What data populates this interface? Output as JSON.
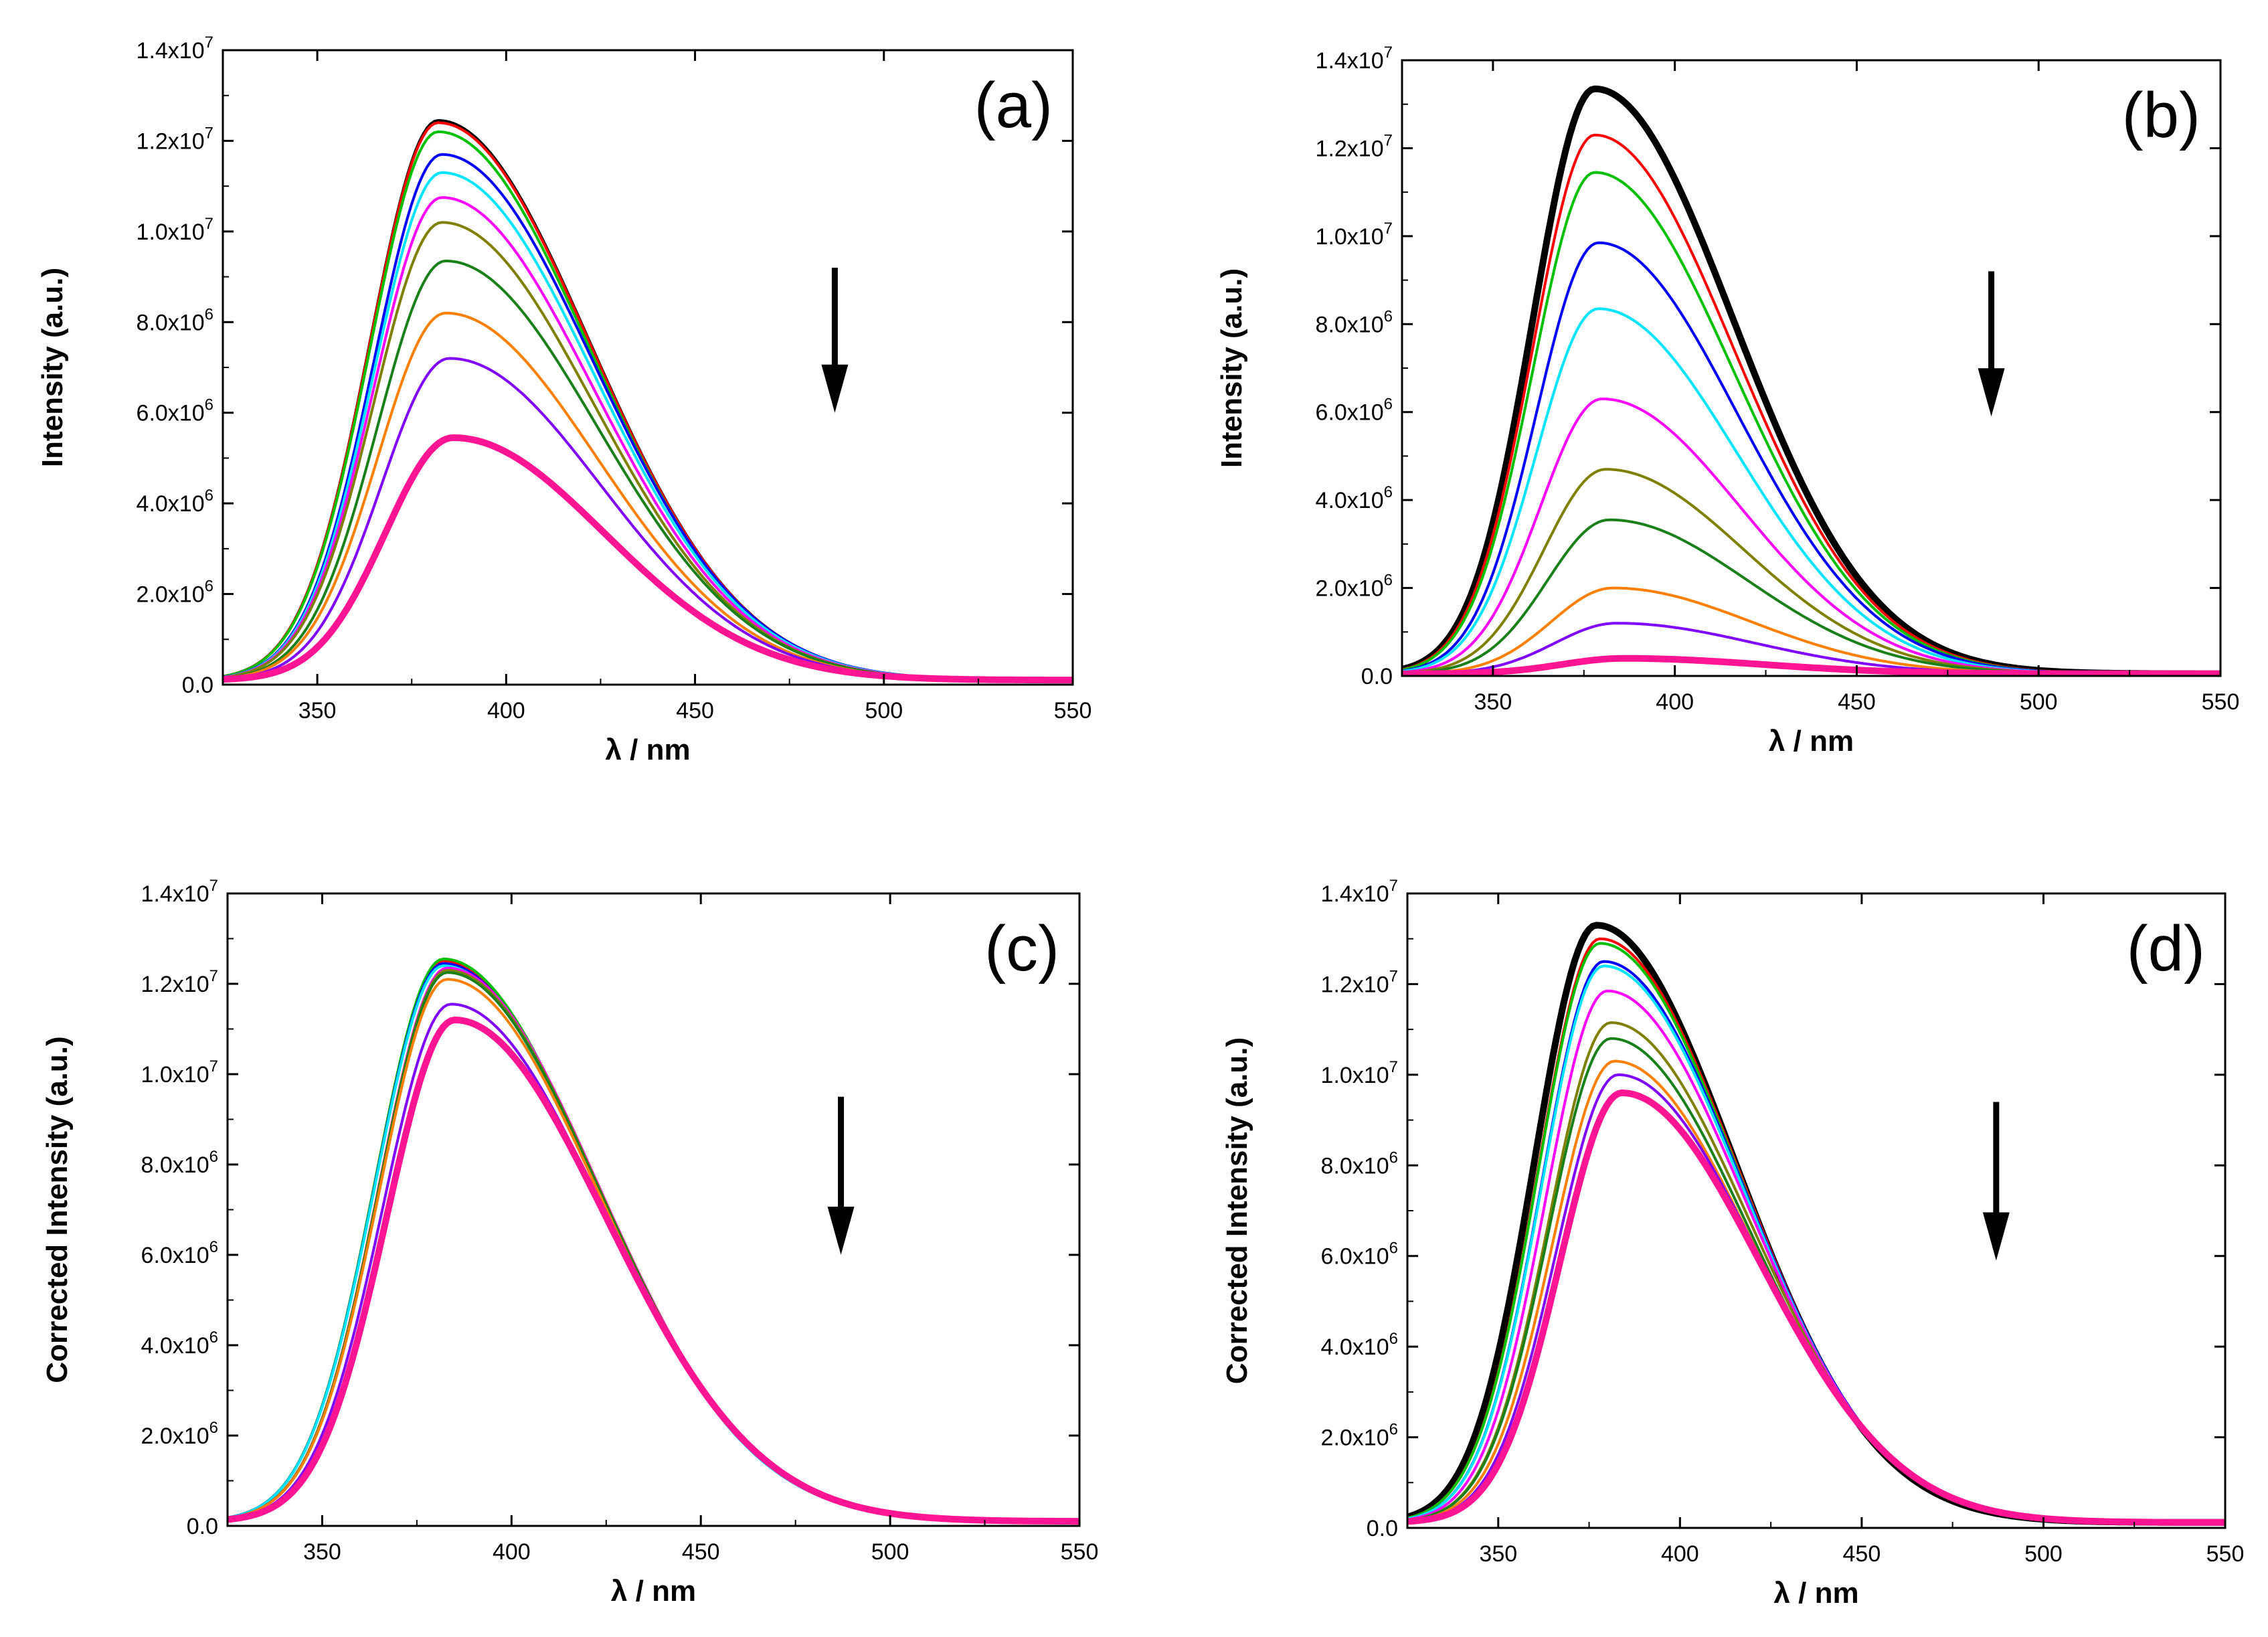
{
  "chart_data": [
    {
      "panel": "(a)",
      "type": "line",
      "xlabel": "λ / nm",
      "ylabel": "Intensity (a.u.)",
      "xlim": [
        325,
        550
      ],
      "ylim": [
        0,
        14000000
      ],
      "xticks": [
        {
          "v": 350,
          "label": "350"
        },
        {
          "v": 400,
          "label": "400"
        },
        {
          "v": 450,
          "label": "450"
        },
        {
          "v": 500,
          "label": "500"
        },
        {
          "v": 550,
          "label": "550"
        }
      ],
      "yticks": [
        {
          "v": 0,
          "mant": "0.0",
          "exp": ""
        },
        {
          "v": 2000000,
          "mant": "2.0x10",
          "exp": "6"
        },
        {
          "v": 4000000,
          "mant": "4.0x10",
          "exp": "6"
        },
        {
          "v": 6000000,
          "mant": "6.0x10",
          "exp": "6"
        },
        {
          "v": 8000000,
          "mant": "8.0x10",
          "exp": "6"
        },
        {
          "v": 10000000,
          "mant": "1.0x10",
          "exp": "7"
        },
        {
          "v": 12000000,
          "mant": "1.2x10",
          "exp": "7"
        },
        {
          "v": 14000000,
          "mant": "1.4x10",
          "exp": "7"
        }
      ],
      "arrow": {
        "x": 487,
        "y_from": 9200000,
        "y_to": 6000000
      },
      "curve_shape": {
        "sigma_left": 18,
        "sigma_right": 40,
        "baseline": 100000
      },
      "series": [
        {
          "color": "#000000",
          "peak": 12450000,
          "center": 382,
          "width": 2
        },
        {
          "color": "#ff0000",
          "peak": 12400000,
          "center": 382,
          "width": 2
        },
        {
          "color": "#00c000",
          "peak": 12200000,
          "center": 382,
          "width": 2
        },
        {
          "color": "#0000ff",
          "peak": 11700000,
          "center": 383,
          "width": 2
        },
        {
          "color": "#00e5ff",
          "peak": 11300000,
          "center": 383,
          "width": 2
        },
        {
          "color": "#ff00ff",
          "peak": 10750000,
          "center": 383,
          "width": 2
        },
        {
          "color": "#808000",
          "peak": 10200000,
          "center": 383,
          "width": 2
        },
        {
          "color": "#1a801a",
          "peak": 9350000,
          "center": 384,
          "width": 2
        },
        {
          "color": "#ff8000",
          "peak": 8200000,
          "center": 384,
          "width": 2
        },
        {
          "color": "#8000ff",
          "peak": 7200000,
          "center": 385,
          "width": 2
        },
        {
          "color": "#ff1493",
          "peak": 5450000,
          "center": 386,
          "width": 5
        }
      ]
    },
    {
      "panel": "(b)",
      "type": "line",
      "xlabel": "λ / nm",
      "ylabel": "Intensity (a.u.)",
      "xlim": [
        325,
        550
      ],
      "ylim": [
        0,
        14000000
      ],
      "xticks": [
        {
          "v": 350,
          "label": "350"
        },
        {
          "v": 400,
          "label": "400"
        },
        {
          "v": 450,
          "label": "450"
        },
        {
          "v": 500,
          "label": "500"
        },
        {
          "v": 550,
          "label": "550"
        }
      ],
      "yticks": [
        {
          "v": 0,
          "mant": "0.0",
          "exp": ""
        },
        {
          "v": 2000000,
          "mant": "2.0x10",
          "exp": "6"
        },
        {
          "v": 4000000,
          "mant": "4.0x10",
          "exp": "6"
        },
        {
          "v": 6000000,
          "mant": "6.0x10",
          "exp": "6"
        },
        {
          "v": 8000000,
          "mant": "8.0x10",
          "exp": "6"
        },
        {
          "v": 10000000,
          "mant": "1.0x10",
          "exp": "7"
        },
        {
          "v": 12000000,
          "mant": "1.2x10",
          "exp": "7"
        },
        {
          "v": 14000000,
          "mant": "1.4x10",
          "exp": "7"
        }
      ],
      "arrow": {
        "x": 487,
        "y_from": 9200000,
        "y_to": 5900000
      },
      "curve_shape": {
        "sigma_left": 17,
        "sigma_right": 38,
        "baseline": 50000
      },
      "series": [
        {
          "color": "#000000",
          "peak": 13350000,
          "center": 378,
          "width": 5
        },
        {
          "color": "#ff0000",
          "peak": 12300000,
          "center": 378,
          "width": 2
        },
        {
          "color": "#00c000",
          "peak": 11450000,
          "center": 378,
          "width": 2
        },
        {
          "color": "#0000ff",
          "peak": 9850000,
          "center": 379,
          "width": 2
        },
        {
          "color": "#00e5ff",
          "peak": 8350000,
          "center": 379,
          "width": 2
        },
        {
          "color": "#ff00ff",
          "peak": 6300000,
          "center": 380,
          "width": 2
        },
        {
          "color": "#808000",
          "peak": 4700000,
          "center": 381,
          "width": 2
        },
        {
          "color": "#1a801a",
          "peak": 3550000,
          "center": 382,
          "width": 2
        },
        {
          "color": "#ff8000",
          "peak": 2000000,
          "center": 383,
          "width": 2
        },
        {
          "color": "#8000ff",
          "peak": 1200000,
          "center": 384,
          "width": 2
        },
        {
          "color": "#ff1493",
          "peak": 400000,
          "center": 386,
          "width": 5
        }
      ]
    },
    {
      "panel": "(c)",
      "type": "line",
      "xlabel": "λ / nm",
      "ylabel": "Corrected Intensity (a.u.)",
      "xlim": [
        325,
        550
      ],
      "ylim": [
        0,
        14000000
      ],
      "xticks": [
        {
          "v": 350,
          "label": "350"
        },
        {
          "v": 400,
          "label": "400"
        },
        {
          "v": 450,
          "label": "450"
        },
        {
          "v": 500,
          "label": "500"
        },
        {
          "v": 550,
          "label": "550"
        }
      ],
      "yticks": [
        {
          "v": 0,
          "mant": "0.0",
          "exp": ""
        },
        {
          "v": 2000000,
          "mant": "2.0x10",
          "exp": "6"
        },
        {
          "v": 4000000,
          "mant": "4.0x10",
          "exp": "6"
        },
        {
          "v": 6000000,
          "mant": "6.0x10",
          "exp": "6"
        },
        {
          "v": 8000000,
          "mant": "8.0x10",
          "exp": "6"
        },
        {
          "v": 10000000,
          "mant": "1.0x10",
          "exp": "7"
        },
        {
          "v": 12000000,
          "mant": "1.2x10",
          "exp": "7"
        },
        {
          "v": 14000000,
          "mant": "1.4x10",
          "exp": "7"
        }
      ],
      "arrow": {
        "x": 487,
        "y_from": 9500000,
        "y_to": 6000000
      },
      "curve_shape": {
        "sigma_left": 18,
        "sigma_right": 40,
        "baseline": 100000
      },
      "series": [
        {
          "color": "#000000",
          "peak": 12500000,
          "center": 382,
          "width": 2
        },
        {
          "color": "#ff0000",
          "peak": 12500000,
          "center": 382,
          "width": 2
        },
        {
          "color": "#00c000",
          "peak": 12550000,
          "center": 382,
          "width": 2
        },
        {
          "color": "#0000ff",
          "peak": 12450000,
          "center": 382,
          "width": 2
        },
        {
          "color": "#00e5ff",
          "peak": 12400000,
          "center": 382,
          "width": 2
        },
        {
          "color": "#ff00ff",
          "peak": 12350000,
          "center": 383,
          "width": 2
        },
        {
          "color": "#808000",
          "peak": 12300000,
          "center": 383,
          "width": 2
        },
        {
          "color": "#1a801a",
          "peak": 12250000,
          "center": 383,
          "width": 2
        },
        {
          "color": "#ff8000",
          "peak": 12100000,
          "center": 383,
          "width": 2
        },
        {
          "color": "#8000ff",
          "peak": 11550000,
          "center": 384,
          "width": 2
        },
        {
          "color": "#ff1493",
          "peak": 11200000,
          "center": 385,
          "width": 5
        }
      ]
    },
    {
      "panel": "(d)",
      "type": "line",
      "xlabel": "λ / nm",
      "ylabel": "Corrected Intensity (a.u.)",
      "xlim": [
        325,
        550
      ],
      "ylim": [
        0,
        14000000
      ],
      "xticks": [
        {
          "v": 350,
          "label": "350"
        },
        {
          "v": 400,
          "label": "400"
        },
        {
          "v": 450,
          "label": "450"
        },
        {
          "v": 500,
          "label": "500"
        },
        {
          "v": 550,
          "label": "550"
        }
      ],
      "yticks": [
        {
          "v": 0,
          "mant": "0.0",
          "exp": ""
        },
        {
          "v": 2000000,
          "mant": "2.0x10",
          "exp": "6"
        },
        {
          "v": 4000000,
          "mant": "4.0x10",
          "exp": "6"
        },
        {
          "v": 6000000,
          "mant": "6.0x10",
          "exp": "6"
        },
        {
          "v": 8000000,
          "mant": "8.0x10",
          "exp": "6"
        },
        {
          "v": 10000000,
          "mant": "1.0x10",
          "exp": "7"
        },
        {
          "v": 12000000,
          "mant": "1.2x10",
          "exp": "7"
        },
        {
          "v": 14000000,
          "mant": "1.4x10",
          "exp": "7"
        }
      ],
      "arrow": {
        "x": 487,
        "y_from": 9400000,
        "y_to": 5900000
      },
      "curve_shape": {
        "sigma_left": 17,
        "sigma_right": 38,
        "baseline": 120000
      },
      "series": [
        {
          "color": "#000000",
          "peak": 13300000,
          "center": 377,
          "width": 5
        },
        {
          "color": "#ff0000",
          "peak": 13000000,
          "center": 378,
          "width": 2
        },
        {
          "color": "#00c000",
          "peak": 12900000,
          "center": 378,
          "width": 2
        },
        {
          "color": "#0000ff",
          "peak": 12500000,
          "center": 379,
          "width": 2
        },
        {
          "color": "#00e5ff",
          "peak": 12400000,
          "center": 379,
          "width": 2
        },
        {
          "color": "#ff00ff",
          "peak": 11850000,
          "center": 380,
          "width": 2
        },
        {
          "color": "#808000",
          "peak": 11150000,
          "center": 381,
          "width": 2
        },
        {
          "color": "#1a801a",
          "peak": 10800000,
          "center": 381,
          "width": 2
        },
        {
          "color": "#ff8000",
          "peak": 10300000,
          "center": 382,
          "width": 2
        },
        {
          "color": "#8000ff",
          "peak": 10000000,
          "center": 383,
          "width": 2
        },
        {
          "color": "#ff1493",
          "peak": 9600000,
          "center": 384,
          "width": 5
        }
      ]
    }
  ]
}
